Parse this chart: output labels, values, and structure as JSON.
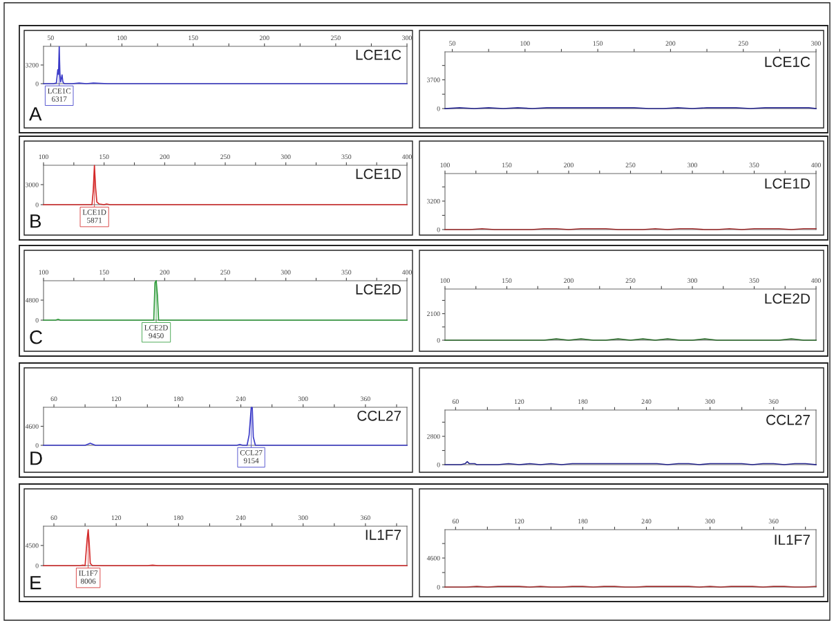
{
  "chart_data": [
    {
      "type": "line",
      "title": "LCE1C",
      "xlim": [
        45,
        300
      ],
      "xticks": [
        50,
        {
          "value": 75,
          "label": null
        },
        100,
        {
          "value": 125,
          "label": null
        },
        150,
        {
          "value": 175,
          "label": null
        },
        200,
        {
          "value": 225,
          "label": null
        },
        250,
        {
          "value": 275,
          "label": null
        },
        300
      ],
      "ylim": [
        0,
        6400
      ],
      "yticks": [
        0,
        3200
      ],
      "series": [
        {
          "color": "#3a3ac8",
          "x": [
            45,
            52,
            54,
            55,
            55.5,
            56,
            56.5,
            57,
            57.5,
            58,
            58.5,
            59,
            60,
            65,
            70,
            75,
            80,
            90,
            100,
            150,
            200,
            250,
            300
          ],
          "values": [
            0,
            0,
            100,
            2400,
            1600,
            6317,
            1800,
            300,
            900,
            1500,
            400,
            100,
            0,
            0,
            100,
            0,
            100,
            0,
            0,
            0,
            0,
            0,
            0
          ]
        }
      ],
      "annotations": [
        {
          "text": "LCE1C\n6317",
          "x": 56,
          "y": 6317
        },
        "A"
      ]
    },
    {
      "type": "line",
      "title": "LCE1C",
      "xlim": [
        45,
        300
      ],
      "xticks": [
        50,
        {
          "value": 75,
          "label": null
        },
        100,
        {
          "value": 125,
          "label": null
        },
        150,
        {
          "value": 175,
          "label": null
        },
        200,
        {
          "value": 225,
          "label": null
        },
        250,
        {
          "value": 275,
          "label": null
        },
        300
      ],
      "ylim": [
        0,
        7300
      ],
      "yticks": [
        0,
        {
          "value": 1850,
          "label": null
        },
        3700,
        {
          "value": 5550,
          "label": null
        }
      ],
      "series": [
        {
          "color": "#2a2a90",
          "x": [
            45,
            55,
            65,
            75,
            85,
            95,
            105,
            115,
            125,
            135,
            145,
            155,
            165,
            175,
            185,
            195,
            205,
            215,
            225,
            235,
            245,
            255,
            265,
            275,
            285,
            295,
            300
          ],
          "values": [
            0,
            100,
            0,
            100,
            0,
            100,
            0,
            100,
            100,
            100,
            100,
            100,
            100,
            100,
            0,
            0,
            100,
            0,
            100,
            100,
            100,
            0,
            100,
            100,
            100,
            100,
            0
          ]
        }
      ]
    },
    {
      "type": "line",
      "title": "LCE1D",
      "xlim": [
        100,
        400
      ],
      "xticks": [
        100,
        {
          "value": 125,
          "label": null
        },
        150,
        {
          "value": 175,
          "label": null
        },
        200,
        {
          "value": 225,
          "label": null
        },
        250,
        {
          "value": 275,
          "label": null
        },
        300,
        {
          "value": 325,
          "label": null
        },
        350,
        {
          "value": 375,
          "label": null
        },
        400
      ],
      "ylim": [
        0,
        5900
      ],
      "yticks": [
        0,
        3000
      ],
      "series": [
        {
          "color": "#d42a2a",
          "x": [
            100,
            130,
            140,
            141,
            142,
            143,
            144,
            146,
            150,
            152,
            155,
            160,
            200,
            250,
            300,
            350,
            400
          ],
          "values": [
            0,
            0,
            0,
            2000,
            5871,
            2500,
            400,
            100,
            0,
            100,
            0,
            0,
            0,
            0,
            0,
            0,
            0
          ]
        }
      ],
      "annotations": [
        {
          "text": "LCE1D\n5871",
          "x": 142,
          "y": 5871
        },
        "B"
      ]
    },
    {
      "type": "line",
      "title": "LCE1D",
      "xlim": [
        100,
        400
      ],
      "xticks": [
        100,
        {
          "value": 125,
          "label": null
        },
        150,
        {
          "value": 175,
          "label": null
        },
        200,
        {
          "value": 225,
          "label": null
        },
        250,
        {
          "value": 275,
          "label": null
        },
        300,
        {
          "value": 325,
          "label": null
        },
        350,
        {
          "value": 375,
          "label": null
        },
        400
      ],
      "ylim": [
        0,
        6300
      ],
      "yticks": [
        0,
        {
          "value": 1600,
          "label": null
        },
        3200,
        {
          "value": 4800,
          "label": null
        }
      ],
      "series": [
        {
          "color": "#a03030",
          "x": [
            100,
            110,
            120,
            130,
            140,
            150,
            160,
            170,
            180,
            190,
            200,
            210,
            220,
            230,
            240,
            250,
            260,
            270,
            280,
            290,
            300,
            310,
            320,
            330,
            340,
            350,
            360,
            370,
            380,
            390,
            400
          ],
          "values": [
            0,
            0,
            0,
            100,
            0,
            0,
            0,
            0,
            100,
            100,
            0,
            100,
            100,
            100,
            0,
            0,
            0,
            100,
            0,
            100,
            100,
            0,
            0,
            100,
            0,
            100,
            100,
            100,
            0,
            100,
            100
          ]
        }
      ]
    },
    {
      "type": "line",
      "title": "LCE2D",
      "xlim": [
        100,
        400
      ],
      "xticks": [
        100,
        {
          "value": 125,
          "label": null
        },
        150,
        {
          "value": 175,
          "label": null
        },
        200,
        {
          "value": 225,
          "label": null
        },
        250,
        {
          "value": 275,
          "label": null
        },
        300,
        {
          "value": 325,
          "label": null
        },
        350,
        {
          "value": 375,
          "label": null
        },
        400
      ],
      "ylim": [
        0,
        9450
      ],
      "yticks": [
        0,
        4800
      ],
      "series": [
        {
          "color": "#2e9a3a",
          "x": [
            100,
            110,
            112,
            114,
            120,
            185,
            191,
            192,
            193,
            194,
            195,
            200,
            250,
            300,
            350,
            400
          ],
          "values": [
            0,
            0,
            200,
            0,
            0,
            0,
            0,
            9000,
            9450,
            6000,
            0,
            0,
            0,
            0,
            0,
            0
          ]
        }
      ],
      "annotations": [
        {
          "text": "LCE2D\n9450",
          "x": 193,
          "y": 9450
        },
        "C"
      ]
    },
    {
      "type": "line",
      "title": "LCE2D",
      "xlim": [
        100,
        400
      ],
      "xticks": [
        100,
        {
          "value": 125,
          "label": null
        },
        150,
        {
          "value": 175,
          "label": null
        },
        200,
        {
          "value": 225,
          "label": null
        },
        250,
        {
          "value": 275,
          "label": null
        },
        300,
        {
          "value": 325,
          "label": null
        },
        350,
        {
          "value": 375,
          "label": null
        },
        400
      ],
      "ylim": [
        0,
        4050
      ],
      "yticks": [
        0,
        {
          "value": 1050,
          "label": null
        },
        2100,
        {
          "value": 3150,
          "label": null
        }
      ],
      "series": [
        {
          "color": "#2a6a2a",
          "x": [
            100,
            110,
            120,
            130,
            140,
            150,
            160,
            170,
            180,
            190,
            200,
            210,
            220,
            230,
            240,
            250,
            260,
            270,
            280,
            290,
            300,
            310,
            320,
            330,
            340,
            350,
            360,
            370,
            380,
            390,
            400
          ],
          "values": [
            0,
            0,
            0,
            0,
            0,
            0,
            0,
            0,
            0,
            100,
            0,
            100,
            0,
            0,
            100,
            0,
            100,
            0,
            100,
            0,
            0,
            100,
            0,
            0,
            0,
            0,
            0,
            0,
            100,
            0,
            0
          ]
        }
      ]
    },
    {
      "type": "line",
      "title": "CCL27",
      "xlim": [
        50,
        400
      ],
      "xticks": [
        60,
        {
          "value": 90,
          "label": null
        },
        120,
        {
          "value": 150,
          "label": null
        },
        180,
        {
          "value": 210,
          "label": null
        },
        240,
        {
          "value": 270,
          "label": null
        },
        300,
        {
          "value": 330,
          "label": null
        },
        360,
        {
          "value": 390,
          "label": null
        }
      ],
      "ylim": [
        0,
        9200
      ],
      "yticks": [
        0,
        4600
      ],
      "series": [
        {
          "color": "#3a3ac8",
          "x": [
            50,
            70,
            90,
            93,
            95,
            97,
            100,
            150,
            236,
            239,
            242,
            246,
            248,
            250,
            251,
            252,
            254,
            260,
            300,
            350,
            400
          ],
          "values": [
            0,
            0,
            0,
            300,
            500,
            300,
            0,
            0,
            0,
            200,
            0,
            0,
            2500,
            9154,
            9154,
            2000,
            0,
            0,
            0,
            0,
            0
          ]
        }
      ],
      "annotations": [
        {
          "text": "CCL27\n9154",
          "x": 250,
          "y": 9154
        },
        "D"
      ]
    },
    {
      "type": "line",
      "title": "CCL27",
      "xlim": [
        50,
        400
      ],
      "xticks": [
        60,
        {
          "value": 90,
          "label": null
        },
        120,
        {
          "value": 150,
          "label": null
        },
        180,
        {
          "value": 210,
          "label": null
        },
        240,
        {
          "value": 270,
          "label": null
        },
        300,
        {
          "value": 330,
          "label": null
        },
        360,
        {
          "value": 390,
          "label": null
        }
      ],
      "ylim": [
        0,
        5400
      ],
      "yticks": [
        0,
        {
          "value": 1400,
          "label": null
        },
        2800,
        {
          "value": 4200,
          "label": null
        }
      ],
      "series": [
        {
          "color": "#2a2a90",
          "x": [
            50,
            65,
            69,
            71,
            73,
            76,
            78,
            80,
            90,
            100,
            110,
            120,
            130,
            140,
            150,
            160,
            170,
            180,
            190,
            200,
            210,
            220,
            230,
            240,
            250,
            260,
            270,
            280,
            290,
            300,
            310,
            320,
            330,
            340,
            350,
            360,
            370,
            380,
            390,
            400
          ],
          "values": [
            0,
            0,
            100,
            300,
            100,
            100,
            100,
            0,
            0,
            0,
            100,
            0,
            100,
            0,
            100,
            0,
            100,
            100,
            100,
            100,
            100,
            100,
            100,
            100,
            100,
            0,
            100,
            100,
            0,
            100,
            100,
            100,
            100,
            0,
            100,
            100,
            0,
            100,
            100,
            0
          ]
        }
      ]
    },
    {
      "type": "line",
      "title": "IL1F7",
      "xlim": [
        50,
        400
      ],
      "xticks": [
        60,
        {
          "value": 90,
          "label": null
        },
        120,
        {
          "value": 150,
          "label": null
        },
        180,
        {
          "value": 210,
          "label": null
        },
        240,
        {
          "value": 270,
          "label": null
        },
        300,
        {
          "value": 330,
          "label": null
        },
        360,
        {
          "value": 390,
          "label": null
        }
      ],
      "ylim": [
        0,
        8800
      ],
      "yticks": [
        0,
        4500
      ],
      "series": [
        {
          "color": "#d42a2a",
          "x": [
            50,
            85,
            88,
            90,
            91,
            92,
            93,
            94,
            95,
            97,
            100,
            150,
            155,
            160,
            200,
            250,
            300,
            350,
            400
          ],
          "values": [
            0,
            0,
            100,
            0,
            3000,
            6000,
            8006,
            5000,
            500,
            0,
            0,
            0,
            100,
            0,
            0,
            0,
            0,
            0,
            0
          ]
        }
      ],
      "annotations": [
        {
          "text": "IL1F7\n8006",
          "x": 93,
          "y": 8006
        },
        "E"
      ]
    },
    {
      "type": "line",
      "title": "IL1F7",
      "xlim": [
        50,
        400
      ],
      "xticks": [
        60,
        {
          "value": 90,
          "label": null
        },
        120,
        {
          "value": 150,
          "label": null
        },
        180,
        {
          "value": 210,
          "label": null
        },
        240,
        {
          "value": 270,
          "label": null
        },
        300,
        {
          "value": 330,
          "label": null
        },
        360,
        {
          "value": 390,
          "label": null
        }
      ],
      "ylim": [
        0,
        9100
      ],
      "yticks": [
        0,
        {
          "value": 2300,
          "label": null
        },
        4600,
        {
          "value": 6900,
          "label": null
        }
      ],
      "series": [
        {
          "color": "#a03030",
          "x": [
            50,
            60,
            70,
            80,
            90,
            100,
            110,
            120,
            130,
            140,
            150,
            160,
            170,
            180,
            190,
            200,
            210,
            220,
            230,
            240,
            250,
            260,
            270,
            280,
            290,
            300,
            310,
            320,
            330,
            340,
            350,
            360,
            370,
            380,
            390,
            400
          ],
          "values": [
            0,
            0,
            0,
            100,
            0,
            100,
            100,
            100,
            0,
            100,
            0,
            0,
            100,
            100,
            0,
            100,
            100,
            0,
            0,
            100,
            100,
            100,
            100,
            100,
            0,
            100,
            0,
            100,
            100,
            100,
            0,
            100,
            100,
            0,
            0,
            100
          ]
        }
      ]
    }
  ]
}
